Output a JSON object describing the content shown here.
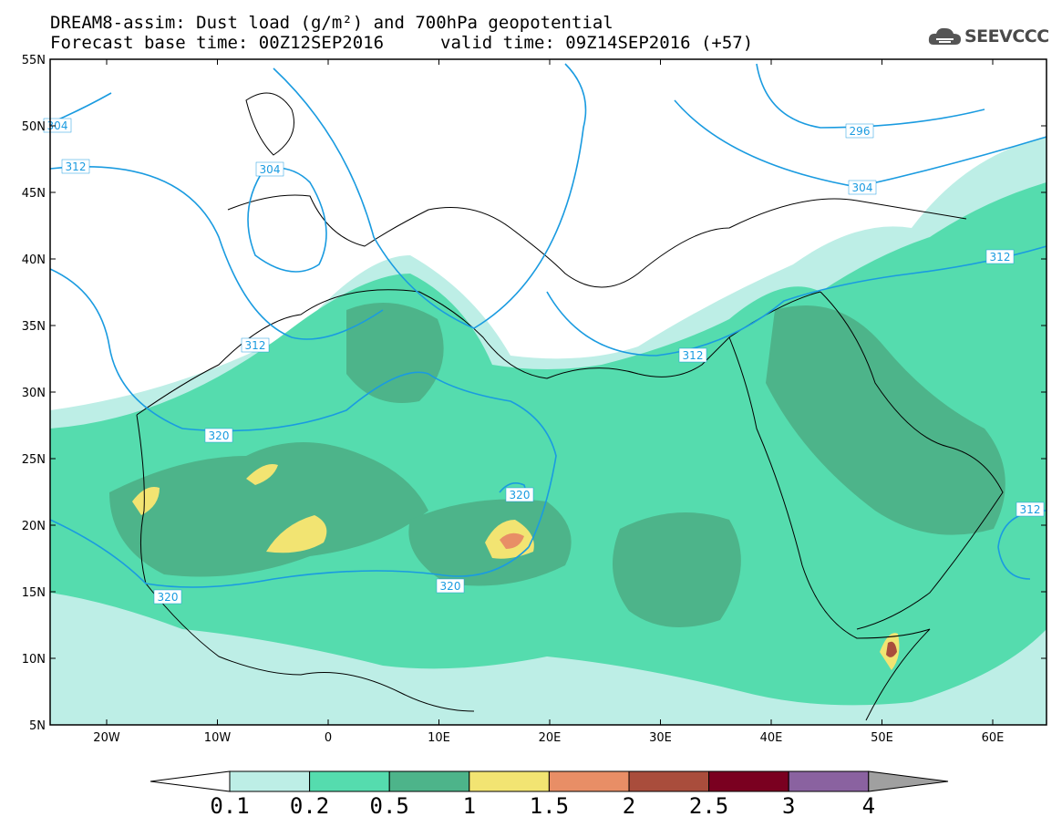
{
  "header": {
    "title": "DREAM8-assim: Dust load (g/m²) and 700hPa geopotential",
    "base_time": "Forecast base time: 00Z12SEP2016",
    "valid_time": "valid time: 09Z14SEP2016 (+57)"
  },
  "logo": {
    "text": "SEEVCCC",
    "icon": "cloud-icon"
  },
  "map": {
    "lat_labels": [
      "55N",
      "50N",
      "45N",
      "40N",
      "35N",
      "30N",
      "25N",
      "20N",
      "15N",
      "10N",
      "5N"
    ],
    "lon_labels": [
      "20W",
      "10W",
      "0",
      "10E",
      "20E",
      "30E",
      "40E",
      "50E",
      "60E"
    ],
    "contour_labels": [
      "304",
      "312",
      "304",
      "312",
      "296",
      "304",
      "312",
      "312",
      "320",
      "320",
      "320",
      "320",
      "312"
    ]
  },
  "colorbar": {
    "levels": [
      "0.1",
      "0.2",
      "0.5",
      "1",
      "1.5",
      "2",
      "2.5",
      "3",
      "4"
    ],
    "colors": [
      "#ffffff",
      "#bdeee6",
      "#55dcae",
      "#4db48a",
      "#f2e472",
      "#e88e66",
      "#a94d3c",
      "#7a0020",
      "#8a62a0",
      "#a0a0a0"
    ]
  }
}
